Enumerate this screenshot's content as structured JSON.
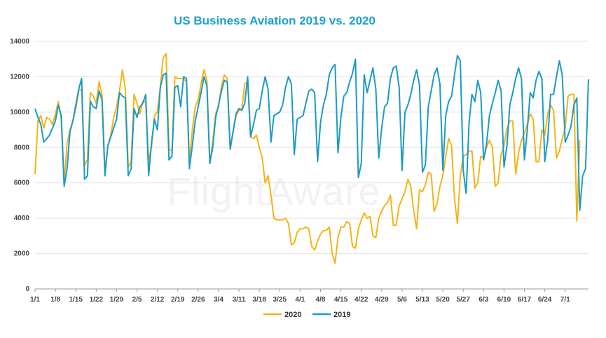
{
  "chart_data": {
    "type": "line",
    "title": "US Business Aviation 2019 vs. 2020",
    "watermark": "FlightAware",
    "xlabel": "",
    "ylabel": "",
    "ylim": [
      0,
      14000
    ],
    "yticks": [
      "0",
      "2000",
      "4000",
      "6000",
      "8000",
      "10000",
      "12000",
      "14000"
    ],
    "x_tick_labels": [
      "1/1",
      "1/8",
      "1/15",
      "1/22",
      "1/29",
      "2/5",
      "2/12",
      "2/19",
      "2/26",
      "3/4",
      "3/11",
      "3/18",
      "3/25",
      "4/1",
      "4/8",
      "4/15",
      "4/22",
      "4/29",
      "5/6",
      "5/13",
      "5/20",
      "5/27",
      "6/3",
      "6/10",
      "6/17",
      "6/24",
      "7/1"
    ],
    "days": 191,
    "legend_position": "bottom-center",
    "series": [
      {
        "name": "2020",
        "color": "#f5b316",
        "values": [
          6500,
          9500,
          9800,
          9100,
          9700,
          9600,
          9300,
          9900,
          10600,
          9600,
          6000,
          8200,
          9000,
          9500,
          10200,
          11200,
          11300,
          7000,
          7300,
          11100,
          10900,
          10500,
          11700,
          11000,
          6700,
          8100,
          8700,
          9700,
          10300,
          11200,
          12400,
          11300,
          6900,
          7200,
          11000,
          10500,
          9900,
          10600,
          10600,
          7300,
          8000,
          9800,
          10000,
          11400,
          13100,
          13300,
          7900,
          7800,
          12000,
          11900,
          11900,
          11900,
          11700,
          7200,
          9000,
          10300,
          10700,
          11600,
          12400,
          11800,
          7100,
          8300,
          9900,
          10300,
          11500,
          12100,
          11900,
          7900,
          8900,
          9800,
          10100,
          10200,
          11600,
          11700,
          8600,
          8500,
          8700,
          8000,
          7400,
          6000,
          6400,
          5300,
          4000,
          3900,
          3900,
          3900,
          4000,
          3700,
          2500,
          2600,
          3200,
          3400,
          3400,
          3500,
          3400,
          2400,
          2200,
          2700,
          3100,
          3300,
          3300,
          3500,
          2000,
          1450,
          2900,
          3500,
          3500,
          3800,
          3700,
          2400,
          2300,
          3400,
          3900,
          4300,
          4000,
          4100,
          3000,
          2900,
          4000,
          4400,
          4700,
          4900,
          5300,
          3600,
          3600,
          4700,
          5100,
          5500,
          6200,
          5800,
          4400,
          3400,
          5600,
          5500,
          5900,
          6600,
          6500,
          4400,
          4800,
          5800,
          6400,
          7500,
          8500,
          8100,
          5100,
          3700,
          6400,
          7500,
          7600,
          7800,
          7800,
          5700,
          6000,
          7500,
          7400,
          8000,
          8400,
          8000,
          5800,
          6000,
          7600,
          8100,
          9100,
          9500,
          9500,
          6500,
          7700,
          8400,
          8800,
          9300,
          9900,
          9600,
          7200,
          7200,
          9000,
          8700,
          9900,
          10400,
          10100,
          7400,
          7800,
          8500,
          9100,
          10900,
          11000,
          11000,
          3850,
          8400
        ]
      },
      {
        "name": "2019",
        "color": "#1a9bc6",
        "values": [
          10200,
          9700,
          9300,
          8300,
          8500,
          8700,
          9100,
          9500,
          10400,
          9800,
          5800,
          6800,
          8900,
          9500,
          10400,
          11300,
          11900,
          6200,
          6400,
          10600,
          10300,
          10200,
          11200,
          10700,
          6400,
          8100,
          8600,
          9100,
          9600,
          11100,
          10900,
          10800,
          6400,
          6800,
          10200,
          9700,
          10300,
          10500,
          11000,
          6400,
          8300,
          9600,
          9000,
          11400,
          12100,
          12200,
          7300,
          7500,
          11400,
          11500,
          10300,
          12000,
          11900,
          6800,
          8100,
          9500,
          10300,
          11100,
          12000,
          11500,
          7100,
          8000,
          9700,
          10400,
          11200,
          11800,
          11700,
          7900,
          8900,
          9900,
          10200,
          10100,
          10500,
          12000,
          8600,
          9300,
          10100,
          10200,
          11200,
          12000,
          11300,
          8300,
          9800,
          9900,
          10000,
          10400,
          11400,
          12000,
          11600,
          7600,
          9600,
          9700,
          9800,
          10500,
          11200,
          11300,
          11100,
          7200,
          9400,
          10400,
          11000,
          12100,
          12500,
          12700,
          7700,
          9700,
          10900,
          11100,
          11700,
          12200,
          13000,
          6300,
          7100,
          12100,
          11100,
          11800,
          12500,
          11300,
          7400,
          9100,
          10300,
          10500,
          11900,
          12500,
          12600,
          11400,
          6700,
          10000,
          10400,
          11000,
          11800,
          12400,
          11500,
          6600,
          7000,
          10300,
          11200,
          12100,
          12500,
          11600,
          6700,
          9800,
          10600,
          10900,
          12100,
          13200,
          12900,
          6700,
          5400,
          9400,
          11000,
          10600,
          11800,
          11100,
          7300,
          8200,
          9800,
          10500,
          11100,
          11800,
          11200,
          6900,
          8100,
          10400,
          11100,
          11900,
          12500,
          11900,
          7300,
          9000,
          11100,
          10800,
          11800,
          12300,
          11900,
          7200,
          8400,
          11000,
          11000,
          12000,
          12900,
          12100,
          8300,
          8700,
          9200,
          10400,
          10800,
          4450,
          6400,
          6800,
          11850
        ]
      }
    ]
  }
}
